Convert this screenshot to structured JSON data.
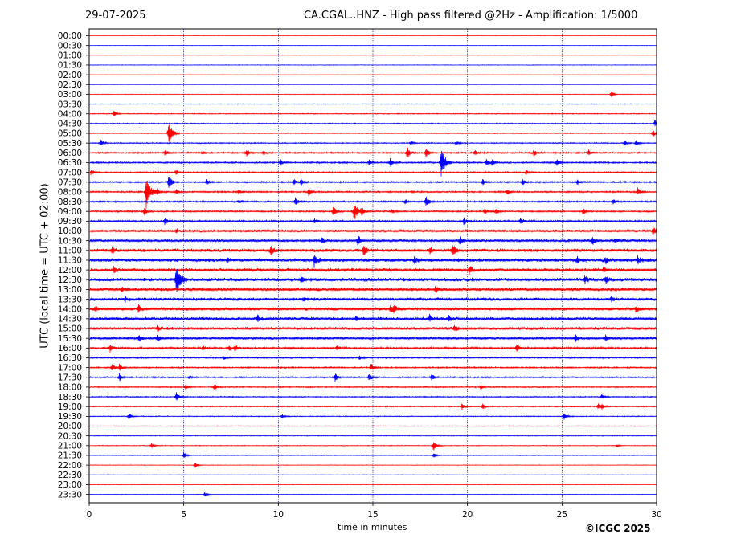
{
  "header": {
    "date": "29-07-2025",
    "title": "CA.CGAL..HNZ - High pass filtered @2Hz - Amplification: 1/5000"
  },
  "footer": {
    "copyright": "©ICGC 2025"
  },
  "chart_data": {
    "type": "line",
    "title": "CA.CGAL..HNZ - High pass filtered @2Hz - Amplification: 1/5000",
    "xlabel": "time in minutes",
    "ylabel": "UTC (local time = UTC + 02:00)",
    "xlim": [
      0,
      30
    ],
    "xticks": [
      0,
      5,
      10,
      15,
      20,
      25,
      30
    ],
    "grid": "vertical dotted lines at 5-minute intervals",
    "trace_colors": [
      "#ff0000",
      "#0000ff"
    ],
    "rows": [
      "00:00",
      "00:30",
      "01:00",
      "01:30",
      "02:00",
      "02:30",
      "03:00",
      "03:30",
      "04:00",
      "04:30",
      "05:00",
      "05:30",
      "06:00",
      "06:30",
      "07:00",
      "07:30",
      "08:00",
      "08:30",
      "09:00",
      "09:30",
      "10:00",
      "10:30",
      "11:00",
      "11:30",
      "12:00",
      "12:30",
      "13:00",
      "13:30",
      "14:00",
      "14:30",
      "15:00",
      "15:30",
      "16:00",
      "16:30",
      "17:00",
      "17:30",
      "18:00",
      "18:30",
      "19:00",
      "19:30",
      "20:00",
      "20:30",
      "21:00",
      "21:30",
      "22:00",
      "22:30",
      "23:00",
      "23:30"
    ],
    "noise_levels": [
      0.2,
      0.2,
      0.2,
      0.3,
      0.2,
      0.2,
      0.3,
      0.4,
      0.5,
      0.6,
      0.5,
      0.6,
      0.9,
      0.9,
      0.8,
      0.9,
      0.9,
      0.9,
      0.9,
      1.0,
      1.5,
      1.6,
      1.9,
      2.0,
      1.9,
      2.0,
      1.9,
      1.8,
      1.8,
      1.8,
      1.7,
      1.4,
      1.1,
      0.8,
      0.8,
      0.8,
      0.7,
      0.6,
      0.6,
      0.5,
      0.4,
      0.4,
      0.4,
      0.4,
      0.3,
      0.3,
      0.3,
      0.2
    ],
    "events": [
      {
        "row": 6,
        "t": 27.6,
        "amp": 4
      },
      {
        "row": 8,
        "t": 1.3,
        "amp": 4
      },
      {
        "row": 9,
        "t": 29.9,
        "amp": 5
      },
      {
        "row": 10,
        "t": 4.2,
        "amp": 18
      },
      {
        "row": 10,
        "t": 29.8,
        "amp": 5
      },
      {
        "row": 11,
        "t": 0.6,
        "amp": 5
      },
      {
        "row": 11,
        "t": 17.0,
        "amp": 3
      },
      {
        "row": 11,
        "t": 19.4,
        "amp": 3
      },
      {
        "row": 11,
        "t": 28.3,
        "amp": 4
      },
      {
        "row": 11,
        "t": 28.9,
        "amp": 4
      },
      {
        "row": 12,
        "t": 4.0,
        "amp": 5
      },
      {
        "row": 12,
        "t": 6.0,
        "amp": 3
      },
      {
        "row": 12,
        "t": 8.3,
        "amp": 5
      },
      {
        "row": 12,
        "t": 9.2,
        "amp": 3
      },
      {
        "row": 12,
        "t": 16.8,
        "amp": 8
      },
      {
        "row": 12,
        "t": 17.8,
        "amp": 7
      },
      {
        "row": 12,
        "t": 20.4,
        "amp": 4
      },
      {
        "row": 12,
        "t": 23.5,
        "amp": 5
      },
      {
        "row": 12,
        "t": 26.4,
        "amp": 4
      },
      {
        "row": 13,
        "t": 10.1,
        "amp": 4
      },
      {
        "row": 13,
        "t": 14.8,
        "amp": 4
      },
      {
        "row": 13,
        "t": 15.9,
        "amp": 6
      },
      {
        "row": 13,
        "t": 18.6,
        "amp": 20
      },
      {
        "row": 13,
        "t": 21.0,
        "amp": 5
      },
      {
        "row": 13,
        "t": 21.3,
        "amp": 4
      },
      {
        "row": 13,
        "t": 24.7,
        "amp": 5
      },
      {
        "row": 14,
        "t": 0.1,
        "amp": 4
      },
      {
        "row": 14,
        "t": 4.6,
        "amp": 4
      },
      {
        "row": 14,
        "t": 23.1,
        "amp": 4
      },
      {
        "row": 15,
        "t": 4.2,
        "amp": 10
      },
      {
        "row": 15,
        "t": 6.2,
        "amp": 5
      },
      {
        "row": 15,
        "t": 10.8,
        "amp": 4
      },
      {
        "row": 15,
        "t": 11.2,
        "amp": 5
      },
      {
        "row": 15,
        "t": 20.8,
        "amp": 4
      },
      {
        "row": 15,
        "t": 22.9,
        "amp": 5
      },
      {
        "row": 15,
        "t": 25.8,
        "amp": 4
      },
      {
        "row": 16,
        "t": 3.0,
        "amp": 22
      },
      {
        "row": 16,
        "t": 3.6,
        "amp": 4
      },
      {
        "row": 16,
        "t": 4.6,
        "amp": 3
      },
      {
        "row": 16,
        "t": 7.9,
        "amp": 3
      },
      {
        "row": 16,
        "t": 11.6,
        "amp": 5
      },
      {
        "row": 16,
        "t": 22.1,
        "amp": 4
      },
      {
        "row": 16,
        "t": 29.0,
        "amp": 5
      },
      {
        "row": 17,
        "t": 7.9,
        "amp": 3
      },
      {
        "row": 17,
        "t": 10.9,
        "amp": 6
      },
      {
        "row": 17,
        "t": 16.7,
        "amp": 4
      },
      {
        "row": 17,
        "t": 17.8,
        "amp": 7
      },
      {
        "row": 17,
        "t": 27.7,
        "amp": 4
      },
      {
        "row": 18,
        "t": 2.9,
        "amp": 6
      },
      {
        "row": 18,
        "t": 12.9,
        "amp": 7
      },
      {
        "row": 18,
        "t": 14.0,
        "amp": 13
      },
      {
        "row": 18,
        "t": 14.4,
        "amp": 6
      },
      {
        "row": 18,
        "t": 16.0,
        "amp": 3
      },
      {
        "row": 18,
        "t": 20.9,
        "amp": 4
      },
      {
        "row": 18,
        "t": 21.5,
        "amp": 4
      },
      {
        "row": 18,
        "t": 26.1,
        "amp": 5
      },
      {
        "row": 19,
        "t": 4.0,
        "amp": 5
      },
      {
        "row": 19,
        "t": 11.9,
        "amp": 4
      },
      {
        "row": 19,
        "t": 19.8,
        "amp": 5
      },
      {
        "row": 19,
        "t": 22.8,
        "amp": 5
      },
      {
        "row": 20,
        "t": 4.6,
        "amp": 3
      },
      {
        "row": 20,
        "t": 29.8,
        "amp": 6
      },
      {
        "row": 21,
        "t": 12.3,
        "amp": 4
      },
      {
        "row": 21,
        "t": 14.2,
        "amp": 7
      },
      {
        "row": 21,
        "t": 19.6,
        "amp": 5
      },
      {
        "row": 21,
        "t": 26.6,
        "amp": 5
      },
      {
        "row": 21,
        "t": 27.8,
        "amp": 3
      },
      {
        "row": 22,
        "t": 1.2,
        "amp": 5
      },
      {
        "row": 22,
        "t": 9.6,
        "amp": 6
      },
      {
        "row": 22,
        "t": 14.5,
        "amp": 7
      },
      {
        "row": 22,
        "t": 18.0,
        "amp": 5
      },
      {
        "row": 22,
        "t": 19.2,
        "amp": 9
      },
      {
        "row": 23,
        "t": 7.3,
        "amp": 3
      },
      {
        "row": 23,
        "t": 11.9,
        "amp": 8
      },
      {
        "row": 23,
        "t": 17.2,
        "amp": 5
      },
      {
        "row": 23,
        "t": 25.8,
        "amp": 5
      },
      {
        "row": 23,
        "t": 27.3,
        "amp": 5
      },
      {
        "row": 23,
        "t": 29.0,
        "amp": 5
      },
      {
        "row": 24,
        "t": 1.3,
        "amp": 5
      },
      {
        "row": 24,
        "t": 20.1,
        "amp": 5
      },
      {
        "row": 24,
        "t": 27.2,
        "amp": 4
      },
      {
        "row": 25,
        "t": 4.6,
        "amp": 22
      },
      {
        "row": 25,
        "t": 11.2,
        "amp": 5
      },
      {
        "row": 25,
        "t": 26.2,
        "amp": 5
      },
      {
        "row": 25,
        "t": 27.3,
        "amp": 5
      },
      {
        "row": 26,
        "t": 1.7,
        "amp": 3
      },
      {
        "row": 26,
        "t": 18.3,
        "amp": 4
      },
      {
        "row": 27,
        "t": 1.9,
        "amp": 3
      },
      {
        "row": 27,
        "t": 11.3,
        "amp": 4
      },
      {
        "row": 27,
        "t": 27.6,
        "amp": 4
      },
      {
        "row": 28,
        "t": 0.3,
        "amp": 4
      },
      {
        "row": 28,
        "t": 2.6,
        "amp": 5
      },
      {
        "row": 28,
        "t": 15.9,
        "amp": 5
      },
      {
        "row": 28,
        "t": 16.1,
        "amp": 6
      },
      {
        "row": 28,
        "t": 28.9,
        "amp": 4
      },
      {
        "row": 29,
        "t": 8.9,
        "amp": 4
      },
      {
        "row": 29,
        "t": 14.1,
        "amp": 3
      },
      {
        "row": 29,
        "t": 18.0,
        "amp": 5
      },
      {
        "row": 29,
        "t": 19.0,
        "amp": 4
      },
      {
        "row": 30,
        "t": 3.6,
        "amp": 4
      },
      {
        "row": 30,
        "t": 19.3,
        "amp": 4
      },
      {
        "row": 31,
        "t": 2.6,
        "amp": 5
      },
      {
        "row": 31,
        "t": 3.6,
        "amp": 5
      },
      {
        "row": 31,
        "t": 25.7,
        "amp": 5
      },
      {
        "row": 31,
        "t": 27.3,
        "amp": 5
      },
      {
        "row": 32,
        "t": 1.1,
        "amp": 5
      },
      {
        "row": 32,
        "t": 6.0,
        "amp": 4
      },
      {
        "row": 32,
        "t": 7.4,
        "amp": 4
      },
      {
        "row": 32,
        "t": 7.7,
        "amp": 4
      },
      {
        "row": 32,
        "t": 13.1,
        "amp": 3
      },
      {
        "row": 32,
        "t": 22.6,
        "amp": 6
      },
      {
        "row": 33,
        "t": 7.1,
        "amp": 3
      },
      {
        "row": 33,
        "t": 14.3,
        "amp": 3
      },
      {
        "row": 34,
        "t": 1.2,
        "amp": 5
      },
      {
        "row": 34,
        "t": 1.6,
        "amp": 5
      },
      {
        "row": 34,
        "t": 14.9,
        "amp": 5
      },
      {
        "row": 35,
        "t": 1.6,
        "amp": 5
      },
      {
        "row": 35,
        "t": 5.3,
        "amp": 3
      },
      {
        "row": 35,
        "t": 13.0,
        "amp": 6
      },
      {
        "row": 35,
        "t": 14.8,
        "amp": 6
      },
      {
        "row": 35,
        "t": 18.1,
        "amp": 5
      },
      {
        "row": 36,
        "t": 5.1,
        "amp": 4
      },
      {
        "row": 36,
        "t": 6.6,
        "amp": 5
      },
      {
        "row": 36,
        "t": 20.7,
        "amp": 3
      },
      {
        "row": 37,
        "t": 4.6,
        "amp": 6
      },
      {
        "row": 37,
        "t": 27.1,
        "amp": 4
      },
      {
        "row": 38,
        "t": 19.7,
        "amp": 4
      },
      {
        "row": 38,
        "t": 20.8,
        "amp": 4
      },
      {
        "row": 38,
        "t": 26.9,
        "amp": 4
      },
      {
        "row": 38,
        "t": 27.1,
        "amp": 4
      },
      {
        "row": 39,
        "t": 2.1,
        "amp": 5
      },
      {
        "row": 39,
        "t": 10.2,
        "amp": 3
      },
      {
        "row": 39,
        "t": 25.1,
        "amp": 5
      },
      {
        "row": 42,
        "t": 3.3,
        "amp": 3
      },
      {
        "row": 42,
        "t": 18.2,
        "amp": 7
      },
      {
        "row": 42,
        "t": 27.9,
        "amp": 2
      },
      {
        "row": 43,
        "t": 5.0,
        "amp": 5
      },
      {
        "row": 43,
        "t": 18.2,
        "amp": 4
      },
      {
        "row": 44,
        "t": 5.6,
        "amp": 4
      },
      {
        "row": 47,
        "t": 6.1,
        "amp": 3
      }
    ]
  }
}
